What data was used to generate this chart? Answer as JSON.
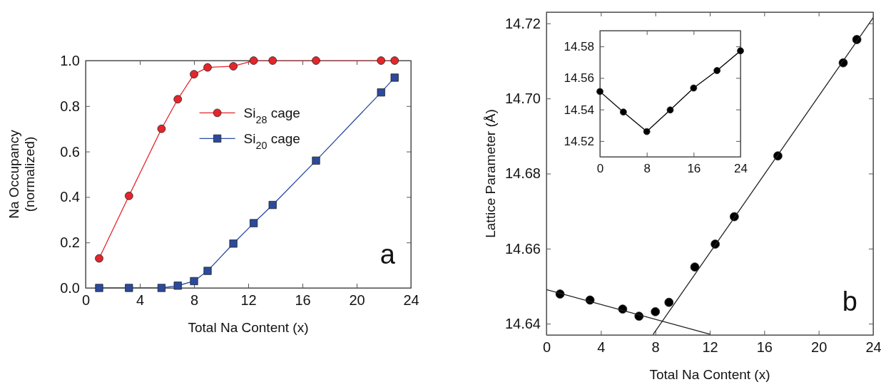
{
  "chart_data": [
    {
      "type": "line",
      "xlabel": "Total Na Content (x)",
      "ylabel": "Na Occupancy\n(normalized)",
      "xlim": [
        0,
        24
      ],
      "ylim": [
        0,
        1
      ],
      "xticks": [
        0,
        4,
        8,
        12,
        16,
        20,
        24
      ],
      "yticks": [
        {
          "value": 0,
          "label": "0.0"
        },
        0.2,
        0.4,
        0.6,
        0.8,
        {
          "value": 1,
          "label": "1.0"
        }
      ],
      "grid": false,
      "legend": "top",
      "annotations": [
        "a"
      ],
      "x": [
        1.0,
        3.2,
        5.6,
        6.8,
        8.0,
        9.0,
        10.9,
        12.4,
        13.8,
        17.0,
        21.8,
        22.8
      ],
      "series": [
        {
          "name": "Si$_{28}$ cage",
          "color": "#e3262b",
          "marker": "circle",
          "values": [
            0.13,
            0.405,
            0.7,
            0.83,
            0.94,
            0.97,
            0.975,
            1.0,
            1.0,
            1.0,
            1.0,
            1.0
          ]
        },
        {
          "name": "Si$_{20}$ cage",
          "color": "#2b4a9c",
          "marker": "square",
          "values": [
            0,
            0,
            0,
            0.01,
            0.03,
            0.075,
            0.195,
            0.285,
            0.365,
            0.56,
            0.86,
            0.925
          ]
        }
      ]
    },
    {
      "type": "scatter",
      "xlabel": "Total Na Content (x)",
      "ylabel": "Lattice Parameter (Å)",
      "xlim": [
        0,
        24
      ],
      "ylim": [
        14.637,
        14.723
      ],
      "xticks": [
        0,
        4,
        8,
        12,
        16,
        20,
        24
      ],
      "yticks": [
        14.64,
        14.66,
        14.68,
        {
          "value": 14.7,
          "label": "14.70"
        },
        14.72
      ],
      "grid": false,
      "annotations": [
        "b"
      ],
      "series": [
        {
          "type": "scatter",
          "color": "#000000",
          "marker": "circle",
          "x": [
            1.0,
            3.2,
            5.6,
            6.8,
            8.0,
            9.0,
            10.9,
            12.4,
            13.8,
            17.0,
            21.8,
            22.8
          ],
          "values": [
            14.6479,
            14.6463,
            14.6439,
            14.642,
            14.6432,
            14.6457,
            14.6551,
            14.6612,
            14.6685,
            14.6847,
            14.7095,
            14.7157
          ]
        },
        {
          "type": "line",
          "color": "#222222",
          "marker": "none",
          "x": [
            0,
            12
          ],
          "values": [
            14.6491,
            14.6372
          ]
        },
        {
          "type": "line",
          "color": "#222222",
          "marker": "none",
          "x": [
            7.85,
            24
          ],
          "values": [
            14.6372,
            14.7215
          ]
        }
      ]
    },
    {
      "type": "line",
      "xlim": [
        0,
        24
      ],
      "ylim": [
        14.51,
        14.59
      ],
      "xticks": [
        0,
        8,
        16,
        24
      ],
      "yticks": [
        14.52,
        14.54,
        14.56,
        14.58
      ],
      "grid": false,
      "series": [
        {
          "color": "#000000",
          "marker": "circle",
          "x": [
            0,
            4,
            8,
            12,
            16,
            20,
            24
          ],
          "values": [
            14.5514,
            14.5384,
            14.526,
            14.5397,
            14.5536,
            14.5647,
            14.5772
          ]
        }
      ]
    }
  ]
}
